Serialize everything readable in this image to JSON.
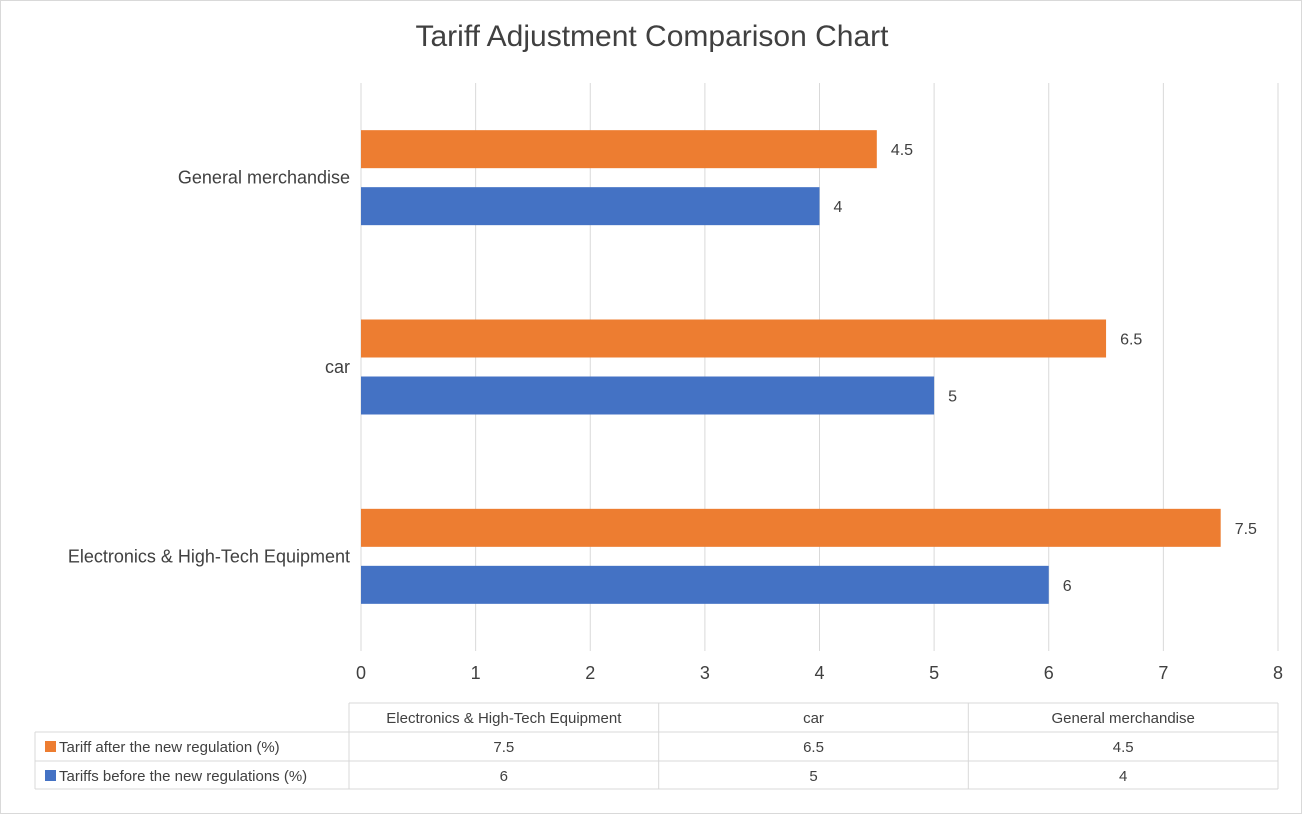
{
  "chart_data": {
    "type": "bar",
    "orientation": "horizontal",
    "title": "Tariff Adjustment Comparison Chart",
    "categories": [
      "Electronics & High-Tech Equipment",
      "car",
      "General merchandise"
    ],
    "series": [
      {
        "name": "Tariff after the new regulation (%)",
        "values": [
          7.5,
          6.5,
          4.5
        ],
        "color": "#ED7D31"
      },
      {
        "name": "Tariffs before the new regulations (%)",
        "values": [
          6,
          5,
          4
        ],
        "color": "#4472C4"
      }
    ],
    "xlim": [
      0,
      8
    ],
    "x_ticks": [
      "0",
      "1",
      "2",
      "3",
      "4",
      "5",
      "6",
      "7",
      "8"
    ],
    "grid": true,
    "legend": "data-table-below"
  }
}
